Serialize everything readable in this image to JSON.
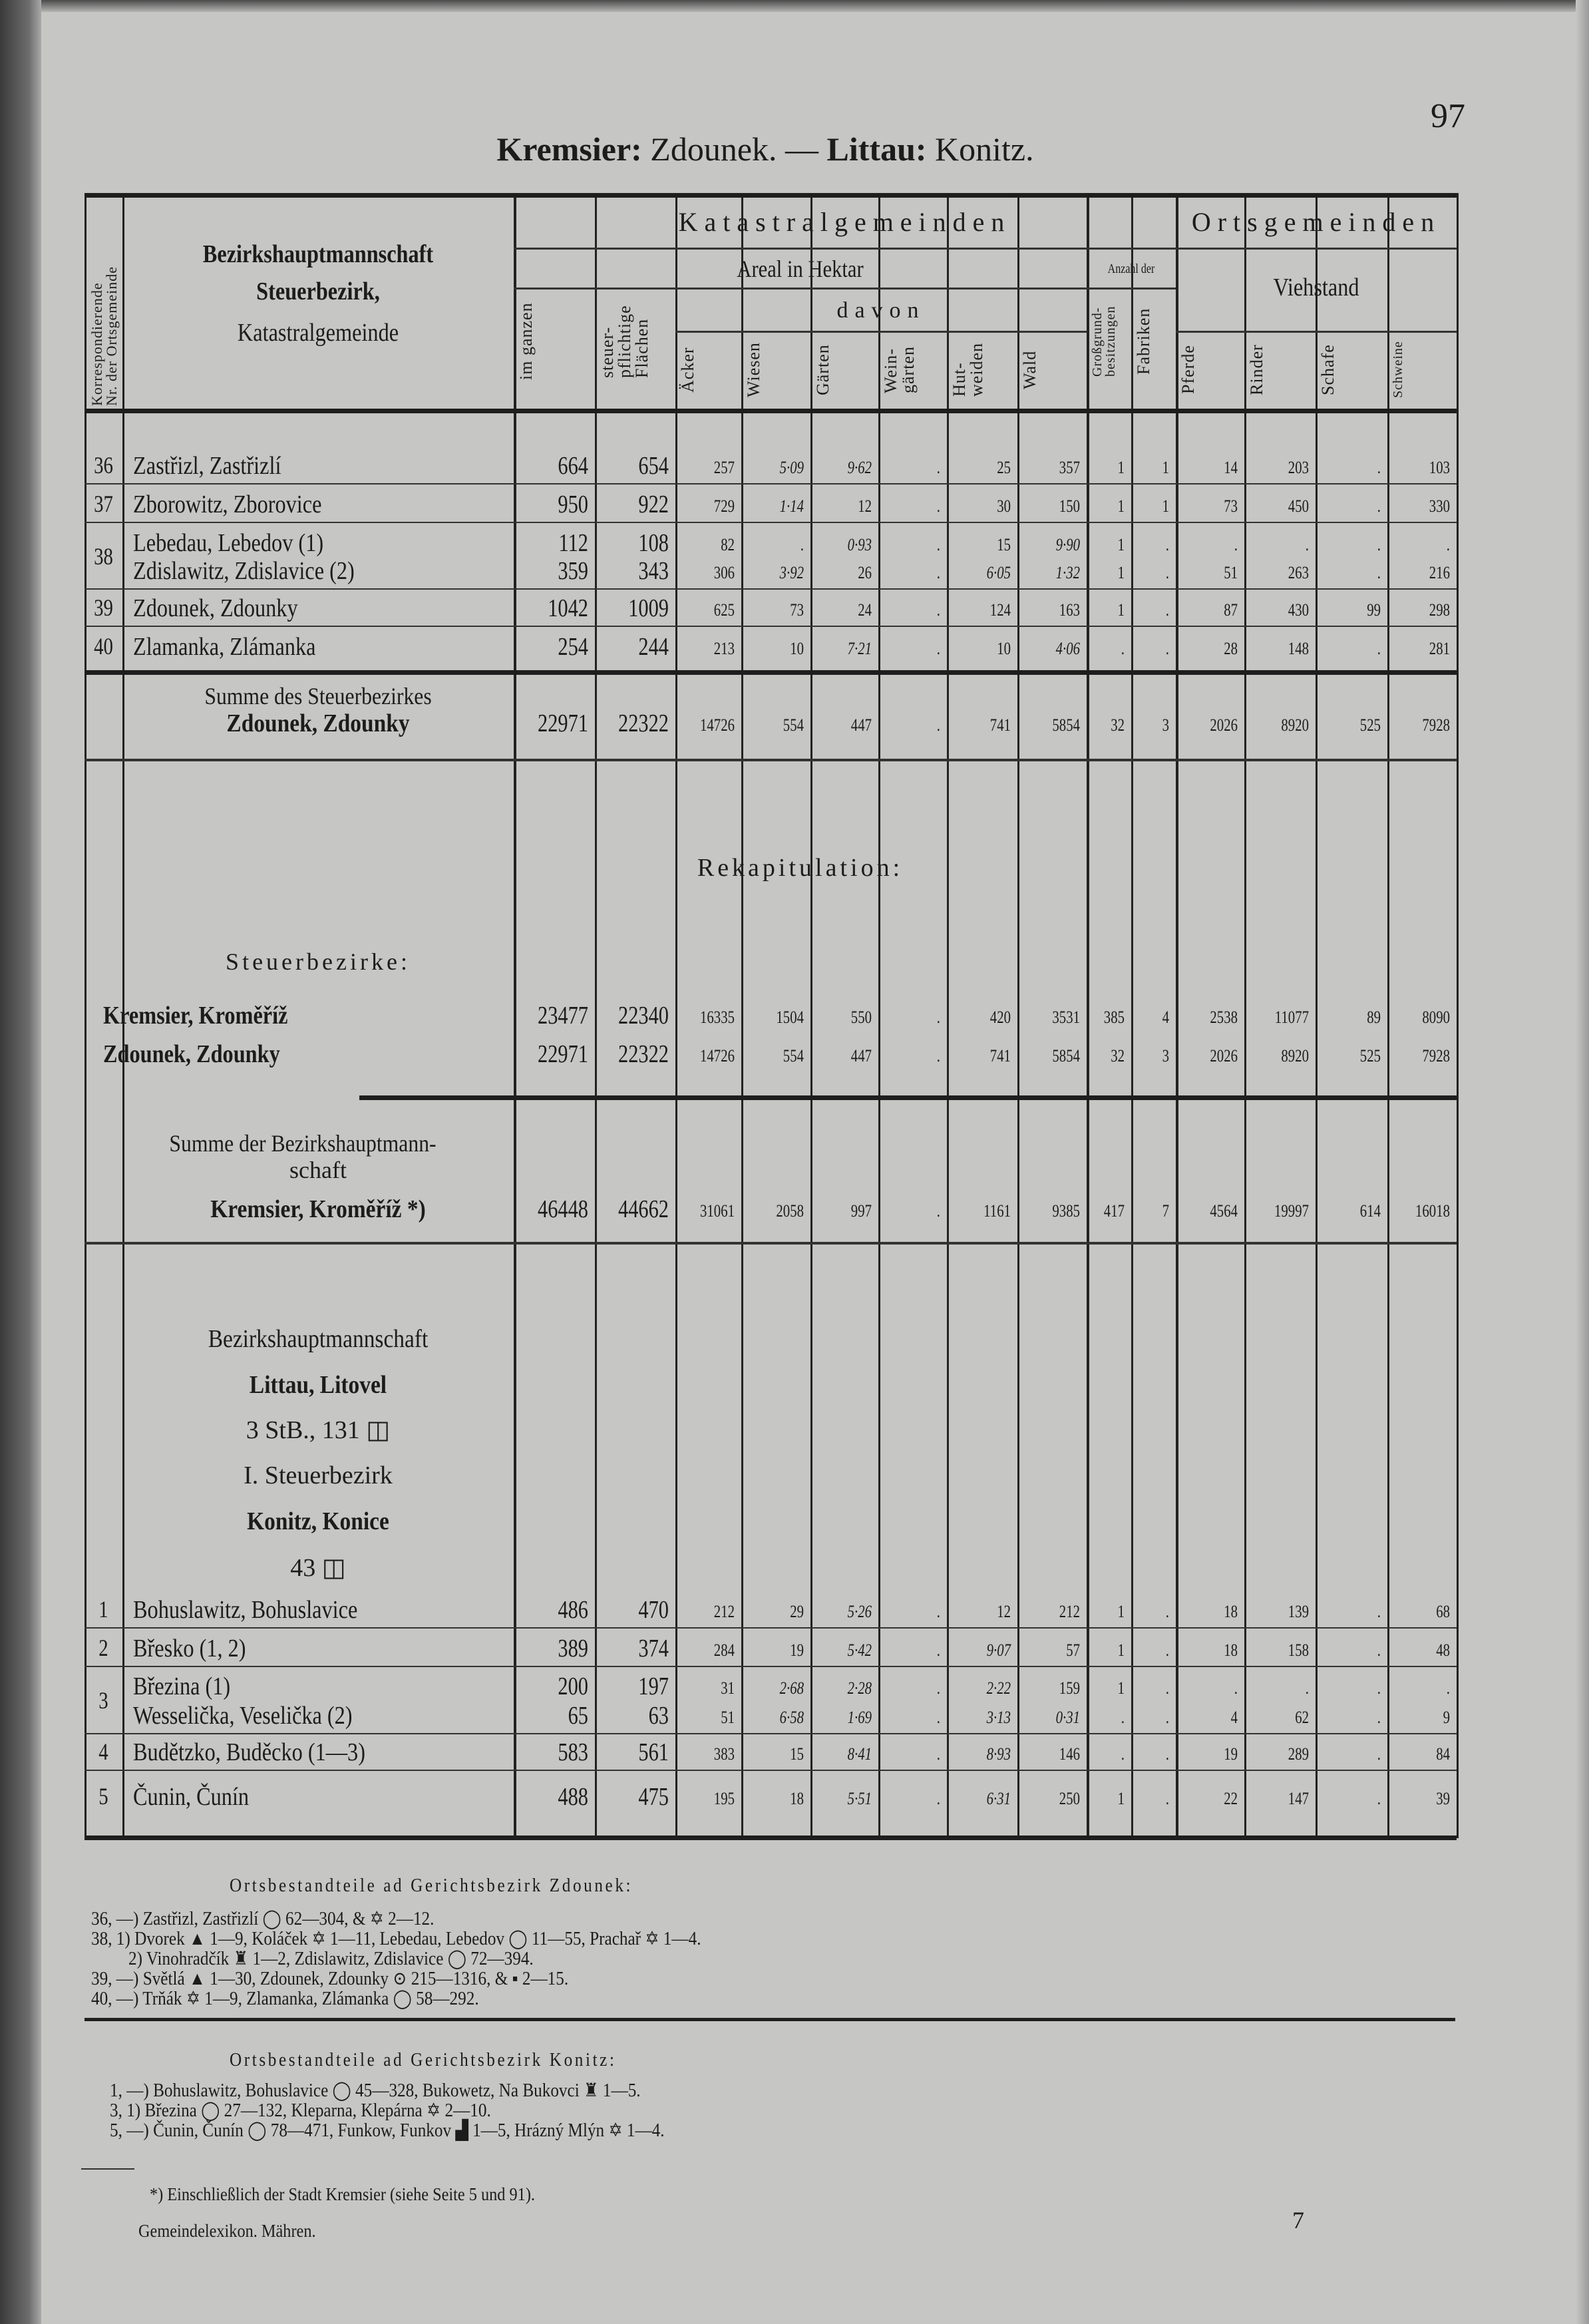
{
  "page_number": "97",
  "title": {
    "part1": "Kremsier:",
    "part2": " Zdounek. — ",
    "part3": "Littau:",
    "part4": " Konitz."
  },
  "header": {
    "nr_label": "Korrespondierende\nNr. der Ortsgemeinde",
    "name_line1": "Bezirkshauptmannschaft",
    "name_line2": "Steuerbezirk,",
    "name_line3": "Katastralgemeinde",
    "katastral": "Katastralgemeinden",
    "areal": "Areal in Hektar",
    "anzahl": "Anzahl der",
    "davon": "davon",
    "orts": "Ortsgemeinden",
    "viehstand": "Viehstand",
    "columns": [
      "im ganzen",
      "steuer-\npflichtige\nFlächen",
      "Äcker",
      "Wiesen",
      "Gärten",
      "Wein-\ngärten",
      "Hut-\nweiden",
      "Wald",
      "Großgrund-\nbesitzungen",
      "Fabriken",
      "Pferde",
      "Rinder",
      "Schafe",
      "Schweine"
    ]
  },
  "zdounek_rows": [
    {
      "nr": "36",
      "names": [
        "Zastřizl, Zastřizlí"
      ],
      "values": [
        [
          "664",
          "654",
          "257",
          "5·09",
          "9·62",
          ".",
          "25",
          "357",
          "1",
          "1",
          "14",
          "203",
          ".",
          "103"
        ]
      ]
    },
    {
      "nr": "37",
      "names": [
        "Zborowitz, Zborovice"
      ],
      "values": [
        [
          "950",
          "922",
          "729",
          "1·14",
          "12",
          ".",
          "30",
          "150",
          "1",
          "1",
          "73",
          "450",
          ".",
          "330"
        ]
      ]
    },
    {
      "nr": "38",
      "names": [
        "Lebedau, Lebedov (1)",
        "Zdislawitz, Zdislavice (2)"
      ],
      "values": [
        [
          "112",
          "108",
          "82",
          ".",
          "0·93",
          ".",
          "15",
          "9·90",
          "1",
          ".",
          ".",
          ".",
          ".",
          "."
        ],
        [
          "359",
          "343",
          "306",
          "3·92",
          "26",
          ".",
          "6·05",
          "1·32",
          "1",
          ".",
          "51",
          "263",
          ".",
          "216"
        ]
      ]
    },
    {
      "nr": "39",
      "names": [
        "Zdounek, Zdounky"
      ],
      "values": [
        [
          "1042",
          "1009",
          "625",
          "73",
          "24",
          ".",
          "124",
          "163",
          "1",
          ".",
          "87",
          "430",
          "99",
          "298"
        ]
      ]
    },
    {
      "nr": "40",
      "names": [
        "Zlamanka, Zlámanka"
      ],
      "values": [
        [
          "254",
          "244",
          "213",
          "10",
          "7·21",
          ".",
          "10",
          "4·06",
          ".",
          ".",
          "28",
          "148",
          ".",
          "281"
        ]
      ]
    }
  ],
  "zdounek_sum": {
    "label1": "Summe des Steuerbezirkes",
    "label2": "Zdounek, Zdounky",
    "values": [
      "22971",
      "22322",
      "14726",
      "554",
      "447",
      ".",
      "741",
      "5854",
      "32",
      "3",
      "2026",
      "8920",
      "525",
      "7928"
    ]
  },
  "recap": {
    "title": "Rekapitulation:",
    "subtitle": "Steuerbezirke:",
    "rows": [
      {
        "name": "Kremsier, Kroměříž",
        "values": [
          "23477",
          "22340",
          "16335",
          "1504",
          "550",
          ".",
          "420",
          "3531",
          "385",
          "4",
          "2538",
          "11077",
          "89",
          "8090"
        ]
      },
      {
        "name": "Zdounek, Zdounky",
        "values": [
          "22971",
          "22322",
          "14726",
          "554",
          "447",
          ".",
          "741",
          "5854",
          "32",
          "3",
          "2026",
          "8920",
          "525",
          "7928"
        ]
      }
    ],
    "sum_label1": "Summe der Bezirkshauptmann-",
    "sum_label2": "schaft",
    "sum_label3": "Kremsier, Kroměříž *)",
    "sum_values": [
      "46448",
      "44662",
      "31061",
      "2058",
      "997",
      ".",
      "1161",
      "9385",
      "417",
      "7",
      "4564",
      "19997",
      "614",
      "16018"
    ]
  },
  "littau": {
    "line1": "Bezirkshauptmannschaft",
    "line2": "Littau, Litovel",
    "line3": "3 StB., 131 ◫",
    "line4": "I. Steuerbezirk",
    "line5": "Konitz, Konice",
    "line6": "43 ◫"
  },
  "konitz_rows": [
    {
      "nr": "1",
      "names": [
        "Bohuslawitz, Bohuslavice"
      ],
      "values": [
        [
          "486",
          "470",
          "212",
          "29",
          "5·26",
          ".",
          "12",
          "212",
          "1",
          ".",
          "18",
          "139",
          ".",
          "68"
        ]
      ]
    },
    {
      "nr": "2",
      "names": [
        "Břesko (1, 2)"
      ],
      "values": [
        [
          "389",
          "374",
          "284",
          "19",
          "5·42",
          ".",
          "9·07",
          "57",
          "1",
          ".",
          "18",
          "158",
          ".",
          "48"
        ]
      ]
    },
    {
      "nr": "3",
      "names": [
        "Březina (1)",
        "Wesselička, Veselička (2)"
      ],
      "values": [
        [
          "200",
          "197",
          "31",
          "2·68",
          "2·28",
          ".",
          "2·22",
          "159",
          "1",
          ".",
          ".",
          ".",
          ".",
          "."
        ],
        [
          "65",
          "63",
          "51",
          "6·58",
          "1·69",
          ".",
          "3·13",
          "0·31",
          ".",
          ".",
          "4",
          "62",
          ".",
          "9"
        ]
      ]
    },
    {
      "nr": "4",
      "names": [
        "Budětzko, Buděcko (1—3)"
      ],
      "values": [
        [
          "583",
          "561",
          "383",
          "15",
          "8·41",
          ".",
          "8·93",
          "146",
          ".",
          ".",
          "19",
          "289",
          ".",
          "84"
        ]
      ]
    },
    {
      "nr": "5",
      "names": [
        "Čunin, Čunín"
      ],
      "values": [
        [
          "488",
          "475",
          "195",
          "18",
          "5·51",
          ".",
          "6·31",
          "250",
          "1",
          ".",
          "22",
          "147",
          ".",
          "39"
        ]
      ]
    }
  ],
  "notes_zdounek": {
    "heading": "Ortsbestandteile ad Gerichtsbezirk Zdounek:",
    "lines": [
      "36, —) Zastřizl, Zastřizlí ◯ 62—304, & ✡ 2—12.",
      "38, 1) Dvorek ▲ 1—9, Koláček ✡ 1—11, Lebedau, Lebedov ◯ 11—55, Prachař ✡ 1—4.",
      "2) Vinohradčík ♜ 1—2, Zdislawitz, Zdislavice ◯ 72—394.",
      "39, —) Světlá ▲ 1—30, Zdounek, Zdounky ⊙ 215—1316, & ▪ 2—15.",
      "40, —) Trňák ✡ 1—9, Zlamanka, Zlámanka ◯ 58—292."
    ]
  },
  "notes_konitz": {
    "heading": "Ortsbestandteile ad Gerichtsbezirk Konitz:",
    "lines": [
      "1, —) Bohuslawitz, Bohuslavice ◯ 45—328, Bukowetz, Na Bukovci ♜ 1—5.",
      "3, 1) Březina ◯ 27—132, Kleparna, Klepárna ✡ 2—10.",
      "5, —) Čunin, Čunín ◯ 78—471, Funkow, Funkov ▟ 1—5, Hrázný Mlýn ✡ 1—4."
    ]
  },
  "footnote": "*) Einschließlich der Stadt Kremsier (siehe Seite 5 und 91).",
  "footer_left": "Gemeindelexikon. Mähren.",
  "signature_mark": "7"
}
